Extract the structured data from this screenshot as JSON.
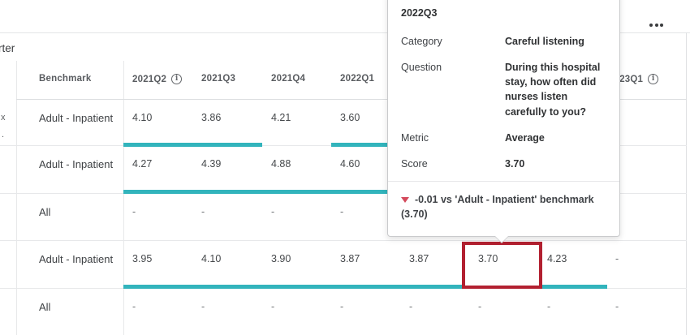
{
  "page": {
    "clipped_title_fragment": "rter",
    "left_column_fragments": [
      "x",
      "."
    ]
  },
  "colors": {
    "teal_underline": "#32b4bc",
    "highlight_box_red": "#b22030",
    "triangle_red": "#d44a5c"
  },
  "table": {
    "benchmark_header": "Benchmark",
    "columns": [
      {
        "label": "2021Q2",
        "info": true
      },
      {
        "label": "2021Q3",
        "info": false
      },
      {
        "label": "2021Q4",
        "info": false
      },
      {
        "label": "2022Q1",
        "info": false
      },
      {
        "label": "",
        "info": false
      },
      {
        "label": "",
        "info": false
      },
      {
        "label": "",
        "info": false
      },
      {
        "label": "2023Q1",
        "info": true
      }
    ],
    "rows": [
      {
        "benchmark": "Adult - Inpatient",
        "values": [
          "4.10",
          "3.86",
          "4.21",
          "3.60",
          "",
          "",
          "",
          ""
        ]
      },
      {
        "benchmark": "Adult - Inpatient",
        "values": [
          "4.27",
          "4.39",
          "4.88",
          "4.60",
          "",
          "",
          "",
          ""
        ]
      },
      {
        "benchmark": "All",
        "values": [
          "-",
          "-",
          "-",
          "-",
          "",
          "",
          "",
          ""
        ]
      },
      {
        "benchmark": "Adult - Inpatient",
        "values": [
          "3.95",
          "4.10",
          "3.90",
          "3.87",
          "3.87",
          "3.70",
          "4.23",
          "-"
        ]
      },
      {
        "benchmark": "All",
        "values": [
          "-",
          "-",
          "-",
          "-",
          "-",
          "-",
          "-",
          "-"
        ]
      }
    ],
    "highlighted_cell": {
      "row": 3,
      "column": 5,
      "value": "3.70"
    }
  },
  "tooltip": {
    "title": "2022Q3",
    "fields": [
      {
        "label": "Category",
        "value": "Careful listening"
      },
      {
        "label": "Question",
        "value": "During this hospital stay, how often did nurses listen carefully to you?"
      },
      {
        "label": "Metric",
        "value": "Average"
      },
      {
        "label": "Score",
        "value": "3.70"
      }
    ],
    "footer_line1": "-0.01 vs 'Adult - Inpatient' benchmark",
    "footer_line2": "(3.70)"
  }
}
